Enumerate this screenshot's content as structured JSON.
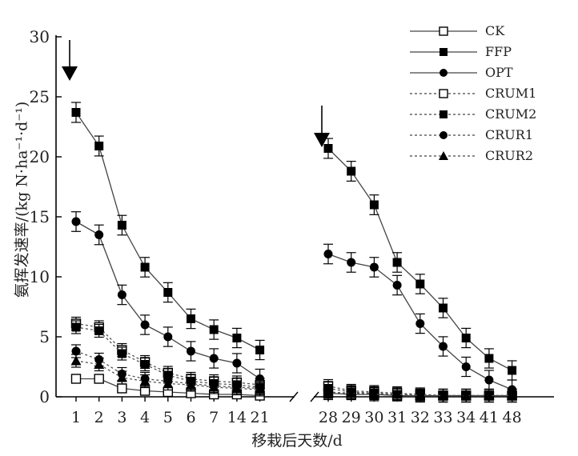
{
  "chart_data": {
    "type": "line",
    "title": "",
    "xlabel": "移栽后天数/d",
    "ylabel": "氨挥发速率/(kg N·ha⁻¹·d⁻¹)",
    "ylim": [
      0,
      30
    ],
    "yticks": [
      "0",
      "5",
      "10",
      "15",
      "20",
      "25",
      "30"
    ],
    "x_segments": [
      [
        "1",
        "2",
        "3",
        "4",
        "5",
        "6",
        "7",
        "14",
        "21"
      ],
      [
        "28",
        "29",
        "30",
        "31",
        "32",
        "33",
        "34",
        "41",
        "48"
      ]
    ],
    "legend_position": "top-right",
    "arrows_at": [
      "1",
      "28"
    ],
    "series": [
      {
        "name": "CK",
        "marker": "open-square",
        "style": "solid",
        "values": [
          [
            1.5,
            1.5,
            0.7,
            0.5,
            0.4,
            0.3,
            0.2,
            0.2,
            0.1
          ],
          [
            0.3,
            0.2,
            0.2,
            0.1,
            0.1,
            0.1,
            0.1,
            0.1,
            0.1
          ]
        ]
      },
      {
        "name": "FFP",
        "marker": "filled-square",
        "style": "solid",
        "values": [
          [
            23.7,
            20.9,
            14.3,
            10.8,
            8.7,
            6.5,
            5.6,
            4.9,
            3.9
          ],
          [
            20.7,
            18.8,
            16.0,
            11.2,
            9.4,
            7.4,
            4.9,
            3.2,
            2.2
          ]
        ]
      },
      {
        "name": "OPT",
        "marker": "filled-circle",
        "style": "solid",
        "values": [
          [
            14.6,
            13.5,
            8.5,
            6.0,
            5.0,
            3.8,
            3.2,
            2.8,
            1.5
          ],
          [
            11.9,
            11.2,
            10.8,
            9.3,
            6.1,
            4.2,
            2.5,
            1.4,
            0.6
          ]
        ]
      },
      {
        "name": "CRUM1",
        "marker": "open-square",
        "style": "dashed",
        "values": [
          [
            6.1,
            5.8,
            3.9,
            2.9,
            2.0,
            1.5,
            1.3,
            1.2,
            1.0
          ],
          [
            0.9,
            0.5,
            0.4,
            0.3,
            0.2,
            0.1,
            0.1,
            0.1,
            0.1
          ]
        ]
      },
      {
        "name": "CRUM2",
        "marker": "filled-square",
        "style": "dashed",
        "values": [
          [
            5.8,
            5.5,
            3.6,
            2.7,
            1.8,
            1.3,
            1.1,
            1.0,
            0.8
          ],
          [
            0.7,
            0.4,
            0.3,
            0.2,
            0.2,
            0.1,
            0.1,
            0.1,
            0.1
          ]
        ]
      },
      {
        "name": "CRUR1",
        "marker": "filled-circle",
        "style": "dashed",
        "values": [
          [
            3.8,
            3.1,
            1.9,
            1.5,
            1.3,
            1.1,
            0.9,
            0.8,
            0.7
          ],
          [
            0.4,
            0.3,
            0.3,
            0.2,
            0.1,
            0.1,
            0.1,
            0.1,
            0.1
          ]
        ]
      },
      {
        "name": "CRUR2",
        "marker": "filled-triangle",
        "style": "dashed",
        "values": [
          [
            3.0,
            2.7,
            1.6,
            1.3,
            1.1,
            1.0,
            0.8,
            0.7,
            0.6
          ],
          [
            0.3,
            0.3,
            0.2,
            0.2,
            0.1,
            0.1,
            0.1,
            0.1,
            0.1
          ]
        ]
      }
    ]
  }
}
